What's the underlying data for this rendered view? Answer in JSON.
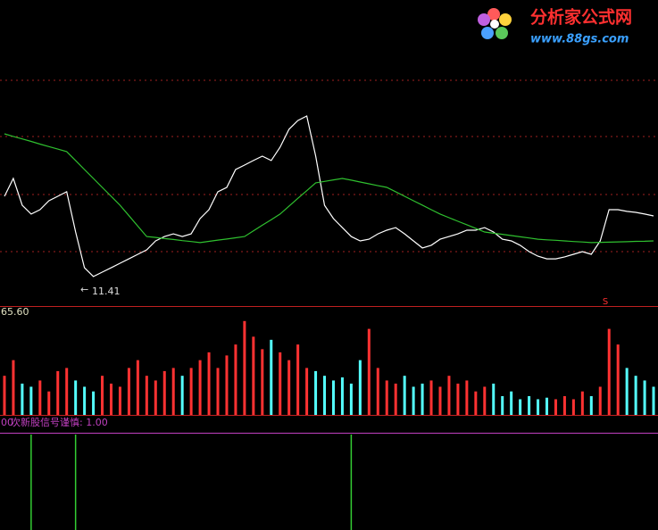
{
  "logo": {
    "title": "分析家公式网",
    "url": "www.88gs.com"
  },
  "chart_data": [
    {
      "type": "line",
      "series": [
        {
          "color": "#ffffff",
          "values": [
            17.49,
            18.63,
            16.92,
            16.36,
            16.64,
            17.21,
            17.49,
            17.78,
            15.22,
            12.94,
            12.38,
            12.66,
            12.94,
            13.23,
            13.51,
            13.8,
            14.08,
            14.65,
            14.93,
            15.1,
            14.93,
            15.1,
            16.07,
            16.64,
            17.78,
            18.06,
            19.2,
            19.48,
            19.77,
            20.05,
            19.77,
            20.62,
            21.76,
            22.32,
            22.61,
            20.05,
            16.92,
            16.07,
            15.5,
            14.93,
            14.65,
            14.76,
            15.1,
            15.33,
            15.5,
            15.1,
            14.65,
            14.2,
            14.37,
            14.76,
            14.93,
            15.1,
            15.33,
            15.33,
            15.5,
            15.22,
            14.76,
            14.65,
            14.37,
            13.97,
            13.68,
            13.51,
            13.51,
            13.63,
            13.8,
            13.97,
            13.8,
            14.65,
            16.64,
            16.64,
            16.53,
            16.47,
            16.36,
            16.24
          ]
        },
        {
          "color": "#2fc02f",
          "values": [
            21.47,
            21.31,
            21.15,
            20.99,
            20.82,
            20.66,
            20.5,
            20.34,
            19.77,
            19.2,
            18.63,
            18.06,
            17.49,
            16.92,
            16.26,
            15.59,
            14.93,
            14.87,
            14.8,
            14.74,
            14.67,
            14.61,
            14.54,
            14.62,
            14.7,
            14.77,
            14.85,
            14.93,
            15.29,
            15.65,
            16.0,
            16.36,
            16.86,
            17.36,
            17.85,
            18.35,
            18.44,
            18.54,
            18.63,
            18.52,
            18.4,
            18.29,
            18.17,
            18.06,
            17.78,
            17.49,
            17.21,
            16.93,
            16.64,
            16.36,
            16.13,
            15.9,
            15.68,
            15.45,
            15.22,
            15.14,
            15.07,
            14.99,
            14.91,
            14.84,
            14.76,
            14.72,
            14.69,
            14.65,
            14.61,
            14.58,
            14.54,
            14.56,
            14.57,
            14.59,
            14.6,
            14.62,
            14.63,
            14.65
          ]
        }
      ],
      "ylim": [
        10.5,
        30
      ],
      "min_label": 11.41,
      "signal_marker": "S"
    },
    {
      "type": "bar",
      "values": [
        25,
        35,
        20,
        18,
        22,
        15,
        28,
        30,
        22,
        18,
        15,
        25,
        20,
        18,
        30,
        35,
        25,
        22,
        28,
        30,
        25,
        30,
        35,
        40,
        30,
        38,
        45,
        60,
        50,
        42,
        48,
        40,
        35,
        45,
        30,
        28,
        25,
        22,
        24,
        20,
        35,
        55,
        30,
        22,
        20,
        25,
        18,
        20,
        22,
        18,
        25,
        20,
        22,
        15,
        18,
        20,
        12,
        15,
        10,
        12,
        10,
        11,
        10,
        12,
        10,
        15,
        12,
        18,
        55,
        45,
        30,
        25,
        22,
        18
      ],
      "colors": {
        "up": "#ff3232",
        "down": "#54ffff"
      },
      "ylim": [
        0,
        65.6
      ],
      "yticks": [
        {
          "value": 65.6,
          "label": "65.60"
        }
      ]
    },
    {
      "type": "bar",
      "title": "次新股信号谨慎: 1.00",
      "color": "#33cc33",
      "values": [
        0,
        0,
        0,
        1,
        0,
        0,
        0,
        0,
        1,
        0,
        0,
        0,
        0,
        0,
        0,
        0,
        0,
        0,
        0,
        0,
        0,
        0,
        0,
        0,
        0,
        0,
        0,
        0,
        0,
        0,
        0,
        0,
        0,
        0,
        0,
        0,
        0,
        0,
        0,
        1,
        0,
        0,
        0,
        0,
        0,
        0,
        0,
        0,
        0,
        0,
        0,
        0,
        0,
        0,
        0,
        0,
        0,
        0,
        0,
        0,
        0,
        0,
        0,
        0,
        0,
        0,
        0,
        0,
        0,
        0,
        0,
        0,
        0,
        0
      ],
      "ylim": [
        0,
        1
      ],
      "yticks": [
        {
          "value": 1,
          "label": "00"
        }
      ]
    }
  ]
}
